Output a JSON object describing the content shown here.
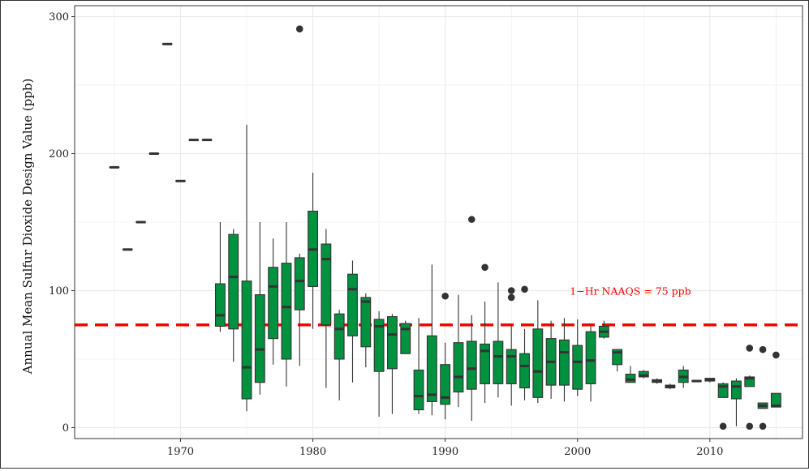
{
  "chart_data": {
    "type": "box",
    "title": "",
    "xlabel": "",
    "ylabel": "Annual Mean Sulfur Dioxide Design Value (ppb)",
    "xlim": [
      1962,
      2017
    ],
    "ylim": [
      -8,
      308
    ],
    "x_ticks": [
      1970,
      1980,
      1990,
      2000,
      2010
    ],
    "y_ticks": [
      0,
      100,
      200,
      300
    ],
    "grid": true,
    "colors": {
      "box_fill": "#00923f",
      "box_stroke": "#333333",
      "reference_line": "#ff0000",
      "grid": "#ebebeb",
      "panel_background": "#ffffff"
    },
    "reference_line": {
      "y": 75,
      "label": "1−Hr NAAQS = 75 ppb",
      "label_x": 2004
    },
    "boxes": [
      {
        "year": 1965,
        "min": 190,
        "q1": 190,
        "median": 190,
        "q3": 190,
        "max": 190,
        "outliers": []
      },
      {
        "year": 1966,
        "min": 130,
        "q1": 130,
        "median": 130,
        "q3": 130,
        "max": 130,
        "outliers": []
      },
      {
        "year": 1967,
        "min": 150,
        "q1": 150,
        "median": 150,
        "q3": 150,
        "max": 150,
        "outliers": []
      },
      {
        "year": 1968,
        "min": 200,
        "q1": 200,
        "median": 200,
        "q3": 200,
        "max": 200,
        "outliers": []
      },
      {
        "year": 1969,
        "min": 280,
        "q1": 280,
        "median": 280,
        "q3": 280,
        "max": 280,
        "outliers": []
      },
      {
        "year": 1970,
        "min": 180,
        "q1": 180,
        "median": 180,
        "q3": 180,
        "max": 180,
        "outliers": []
      },
      {
        "year": 1971,
        "min": 210,
        "q1": 210,
        "median": 210,
        "q3": 210,
        "max": 210,
        "outliers": []
      },
      {
        "year": 1972,
        "min": 210,
        "q1": 210,
        "median": 210,
        "q3": 210,
        "max": 210,
        "outliers": []
      },
      {
        "year": 1973,
        "min": 70,
        "q1": 74,
        "median": 82,
        "q3": 105,
        "max": 150,
        "outliers": []
      },
      {
        "year": 1974,
        "min": 48,
        "q1": 72,
        "median": 110,
        "q3": 141,
        "max": 145,
        "outliers": []
      },
      {
        "year": 1975,
        "min": 12,
        "q1": 21,
        "median": 44,
        "q3": 107,
        "max": 221,
        "outliers": []
      },
      {
        "year": 1976,
        "min": 24,
        "q1": 33,
        "median": 57,
        "q3": 97,
        "max": 150,
        "outliers": []
      },
      {
        "year": 1977,
        "min": 46,
        "q1": 65,
        "median": 103,
        "q3": 117,
        "max": 138,
        "outliers": []
      },
      {
        "year": 1978,
        "min": 30,
        "q1": 50,
        "median": 88,
        "q3": 120,
        "max": 150,
        "outliers": []
      },
      {
        "year": 1979,
        "min": 45,
        "q1": 86,
        "median": 107,
        "q3": 124,
        "max": 127,
        "outliers": [
          291
        ]
      },
      {
        "year": 1980,
        "min": 72,
        "q1": 103,
        "median": 130,
        "q3": 158,
        "max": 186,
        "outliers": []
      },
      {
        "year": 1981,
        "min": 29,
        "q1": 75,
        "median": 123,
        "q3": 134,
        "max": 145,
        "outliers": []
      },
      {
        "year": 1982,
        "min": 20,
        "q1": 50,
        "median": 72,
        "q3": 83,
        "max": 86,
        "outliers": []
      },
      {
        "year": 1983,
        "min": 33,
        "q1": 67,
        "median": 101,
        "q3": 112,
        "max": 122,
        "outliers": []
      },
      {
        "year": 1984,
        "min": 44,
        "q1": 59,
        "median": 92,
        "q3": 95,
        "max": 98,
        "outliers": []
      },
      {
        "year": 1985,
        "min": 8,
        "q1": 41,
        "median": 74,
        "q3": 79,
        "max": 85,
        "outliers": []
      },
      {
        "year": 1986,
        "min": 10,
        "q1": 43,
        "median": 68,
        "q3": 81,
        "max": 83,
        "outliers": []
      },
      {
        "year": 1987,
        "min": 54,
        "q1": 54,
        "median": 72,
        "q3": 76,
        "max": 78,
        "outliers": []
      },
      {
        "year": 1988,
        "min": 10,
        "q1": 13,
        "median": 23,
        "q3": 42,
        "max": 80,
        "outliers": []
      },
      {
        "year": 1989,
        "min": 9,
        "q1": 19,
        "median": 24,
        "q3": 67,
        "max": 119,
        "outliers": []
      },
      {
        "year": 1990,
        "min": 6,
        "q1": 17,
        "median": 22,
        "q3": 46,
        "max": 62,
        "outliers": [
          96
        ]
      },
      {
        "year": 1991,
        "min": 15,
        "q1": 26,
        "median": 37,
        "q3": 62,
        "max": 97,
        "outliers": []
      },
      {
        "year": 1992,
        "min": 5,
        "q1": 28,
        "median": 43,
        "q3": 63,
        "max": 82,
        "outliers": [
          152
        ]
      },
      {
        "year": 1993,
        "min": 18,
        "q1": 32,
        "median": 56,
        "q3": 61,
        "max": 92,
        "outliers": [
          117
        ]
      },
      {
        "year": 1994,
        "min": 22,
        "q1": 32,
        "median": 52,
        "q3": 63,
        "max": 106,
        "outliers": []
      },
      {
        "year": 1995,
        "min": 16,
        "q1": 32,
        "median": 52,
        "q3": 57,
        "max": 75,
        "outliers": [
          95,
          100
        ]
      },
      {
        "year": 1996,
        "min": 20,
        "q1": 29,
        "median": 45,
        "q3": 54,
        "max": 72,
        "outliers": [
          101
        ]
      },
      {
        "year": 1997,
        "min": 18,
        "q1": 22,
        "median": 41,
        "q3": 72,
        "max": 93,
        "outliers": []
      },
      {
        "year": 1998,
        "min": 21,
        "q1": 31,
        "median": 48,
        "q3": 65,
        "max": 78,
        "outliers": []
      },
      {
        "year": 1999,
        "min": 19,
        "q1": 31,
        "median": 55,
        "q3": 64,
        "max": 80,
        "outliers": []
      },
      {
        "year": 2000,
        "min": 23,
        "q1": 28,
        "median": 48,
        "q3": 60,
        "max": 79,
        "outliers": []
      },
      {
        "year": 2001,
        "min": 19,
        "q1": 32,
        "median": 49,
        "q3": 70,
        "max": 74,
        "outliers": []
      },
      {
        "year": 2002,
        "min": 65,
        "q1": 66,
        "median": 70,
        "q3": 74,
        "max": 78,
        "outliers": []
      },
      {
        "year": 2003,
        "min": 41,
        "q1": 46,
        "median": 55,
        "q3": 57,
        "max": 57,
        "outliers": []
      },
      {
        "year": 2004,
        "min": 33,
        "q1": 33,
        "median": 35,
        "q3": 39,
        "max": 45,
        "outliers": []
      },
      {
        "year": 2005,
        "min": 36,
        "q1": 37,
        "median": 38,
        "q3": 41,
        "max": 42,
        "outliers": []
      },
      {
        "year": 2006,
        "min": 32,
        "q1": 33,
        "median": 34,
        "q3": 35,
        "max": 36,
        "outliers": []
      },
      {
        "year": 2007,
        "min": 28,
        "q1": 29,
        "median": 30,
        "q3": 31,
        "max": 32,
        "outliers": []
      },
      {
        "year": 2008,
        "min": 29,
        "q1": 33,
        "median": 37,
        "q3": 42,
        "max": 45,
        "outliers": []
      },
      {
        "year": 2009,
        "min": 34,
        "q1": 34,
        "median": 34,
        "q3": 34,
        "max": 34,
        "outliers": []
      },
      {
        "year": 2010,
        "min": 33,
        "q1": 34,
        "median": 35,
        "q3": 36,
        "max": 36,
        "outliers": []
      },
      {
        "year": 2011,
        "min": 22,
        "q1": 22,
        "median": 30,
        "q3": 32,
        "max": 33,
        "outliers": [
          1
        ]
      },
      {
        "year": 2012,
        "min": 1,
        "q1": 21,
        "median": 30,
        "q3": 34,
        "max": 36,
        "outliers": []
      },
      {
        "year": 2013,
        "min": 30,
        "q1": 30,
        "median": 36,
        "q3": 37,
        "max": 38,
        "outliers": [
          58,
          1
        ]
      },
      {
        "year": 2014,
        "min": 14,
        "q1": 14,
        "median": 16,
        "q3": 18,
        "max": 18,
        "outliers": [
          57,
          1
        ]
      },
      {
        "year": 2015,
        "min": 15,
        "q1": 15,
        "median": 16,
        "q3": 25,
        "max": 25,
        "outliers": [
          53
        ]
      }
    ]
  }
}
